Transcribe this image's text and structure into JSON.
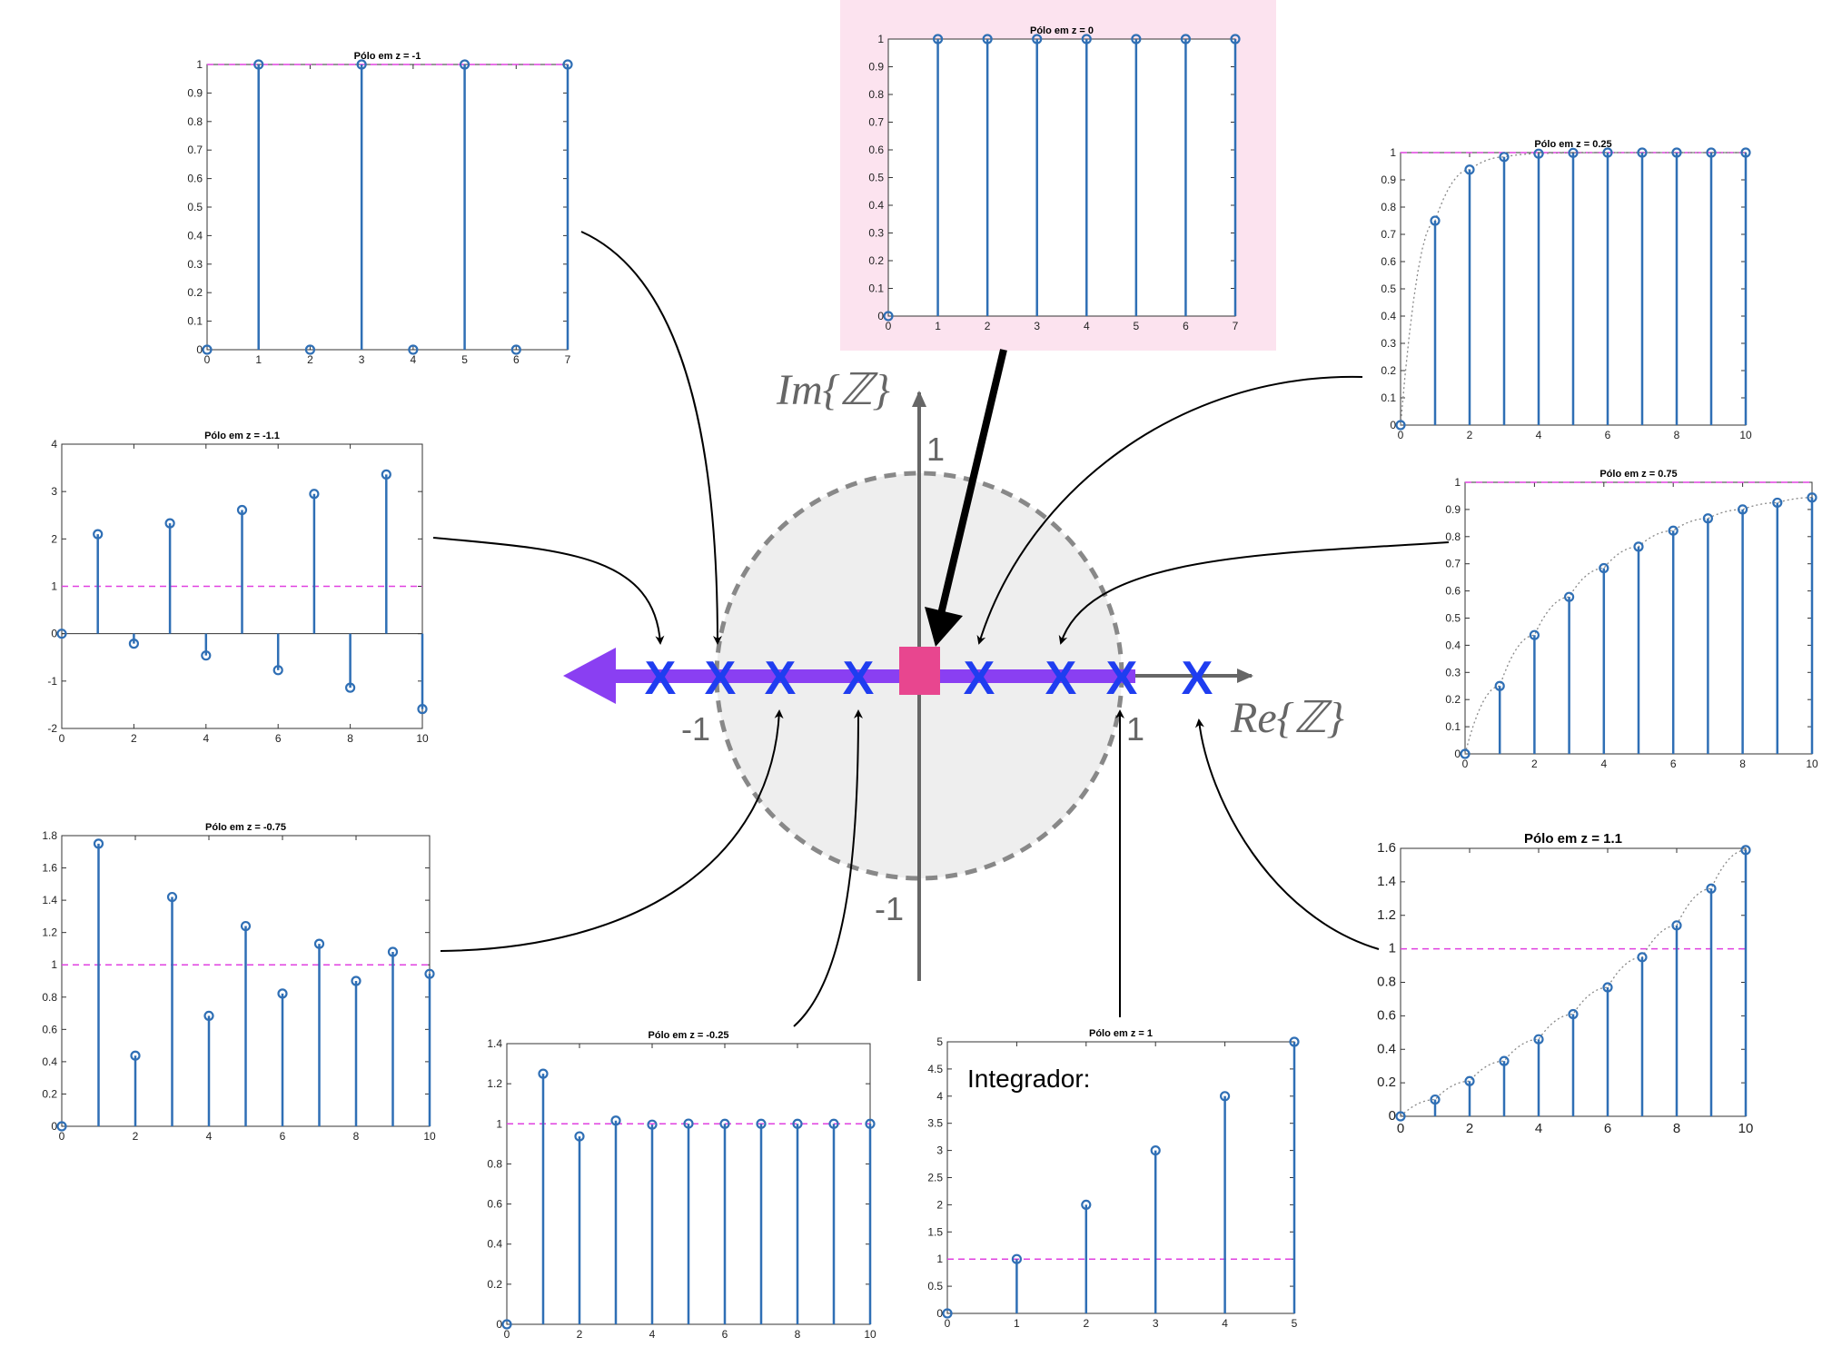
{
  "colors": {
    "stem": "#2f6fb5",
    "reference": "#e040e0",
    "envelope": "#888888",
    "pole_marker": "#1f3df0",
    "zero_marker": "#e8468f",
    "arrow_axis": "#8a3ff2",
    "highlight_bg": "#fce3ef",
    "unit_circle_fill": "#eeeeee",
    "unit_circle_edge": "#888888"
  },
  "diagram": {
    "im_label": "Im{ℤ}",
    "re_label": "Re{ℤ}",
    "tick_im_pos": "1",
    "tick_im_neg": "-1",
    "tick_re_neg": "-1",
    "tick_re_pos": "1",
    "pole_symbol": "X"
  },
  "chart_data": [
    {
      "id": "pole-m1",
      "type": "stem",
      "title": "Pólo em z = -1",
      "x": [
        0,
        1,
        2,
        3,
        4,
        5,
        6,
        7
      ],
      "y": [
        0,
        1,
        0,
        1,
        0,
        1,
        0,
        1
      ],
      "xlim": [
        0,
        7
      ],
      "ylim": [
        0,
        1
      ],
      "xticks": [
        "0",
        "1",
        "2",
        "3",
        "4",
        "5",
        "6",
        "7"
      ],
      "yticks": [
        "0",
        "0.1",
        "0.2",
        "0.3",
        "0.4",
        "0.5",
        "0.6",
        "0.7",
        "0.8",
        "0.9",
        "1"
      ],
      "reference": 1,
      "envelope": false,
      "highlight": false,
      "note": ""
    },
    {
      "id": "pole-0",
      "type": "stem",
      "title": "Pólo em z = 0",
      "x": [
        0,
        1,
        2,
        3,
        4,
        5,
        6,
        7
      ],
      "y": [
        0,
        1,
        1,
        1,
        1,
        1,
        1,
        1
      ],
      "xlim": [
        0,
        7
      ],
      "ylim": [
        0,
        1
      ],
      "xticks": [
        "0",
        "1",
        "2",
        "3",
        "4",
        "5",
        "6",
        "7"
      ],
      "yticks": [
        "0",
        "0.1",
        "0.2",
        "0.3",
        "0.4",
        "0.5",
        "0.6",
        "0.7",
        "0.8",
        "0.9",
        "1"
      ],
      "reference": null,
      "envelope": false,
      "highlight": true,
      "note": ""
    },
    {
      "id": "pole-025",
      "type": "stem",
      "title": "Pólo em z = 0.25",
      "x": [
        0,
        1,
        2,
        3,
        4,
        5,
        6,
        7,
        8,
        9,
        10
      ],
      "y": [
        0,
        0.75,
        0.9375,
        0.984,
        0.996,
        0.999,
        1,
        1,
        1,
        1,
        1
      ],
      "xlim": [
        0,
        10
      ],
      "ylim": [
        0,
        1
      ],
      "xticks": [
        "0",
        "2",
        "4",
        "6",
        "8",
        "10"
      ],
      "yticks": [
        "0",
        "0.1",
        "0.2",
        "0.3",
        "0.4",
        "0.5",
        "0.6",
        "0.7",
        "0.8",
        "0.9",
        "1"
      ],
      "reference": 1,
      "envelope": true,
      "highlight": false,
      "note": ""
    },
    {
      "id": "pole-m11",
      "type": "stem",
      "title": "Pólo em z = -1.1",
      "x": [
        0,
        1,
        2,
        3,
        4,
        5,
        6,
        7,
        8,
        9,
        10
      ],
      "y": [
        0,
        2.1,
        -0.21,
        2.33,
        -0.46,
        2.61,
        -0.77,
        2.95,
        -1.14,
        3.36,
        -1.59
      ],
      "xlim": [
        0,
        10
      ],
      "ylim": [
        -2,
        4
      ],
      "xticks": [
        "0",
        "2",
        "4",
        "6",
        "8",
        "10"
      ],
      "yticks": [
        "-2",
        "-1",
        "0",
        "1",
        "2",
        "3",
        "4"
      ],
      "reference": 1,
      "envelope": false,
      "highlight": false,
      "note": ""
    },
    {
      "id": "pole-075",
      "type": "stem",
      "title": "Pólo em z = 0.75",
      "x": [
        0,
        1,
        2,
        3,
        4,
        5,
        6,
        7,
        8,
        9,
        10
      ],
      "y": [
        0,
        0.25,
        0.4375,
        0.578,
        0.684,
        0.763,
        0.822,
        0.867,
        0.9,
        0.925,
        0.944
      ],
      "xlim": [
        0,
        10
      ],
      "ylim": [
        0,
        1
      ],
      "xticks": [
        "0",
        "2",
        "4",
        "6",
        "8",
        "10"
      ],
      "yticks": [
        "0",
        "0.1",
        "0.2",
        "0.3",
        "0.4",
        "0.5",
        "0.6",
        "0.7",
        "0.8",
        "0.9",
        "1"
      ],
      "reference": 1,
      "envelope": true,
      "highlight": false,
      "note": ""
    },
    {
      "id": "pole-m075",
      "type": "stem",
      "title": "Pólo em z = -0.75",
      "x": [
        0,
        1,
        2,
        3,
        4,
        5,
        6,
        7,
        8,
        9,
        10
      ],
      "y": [
        0,
        1.75,
        0.4375,
        1.42,
        0.684,
        1.24,
        0.822,
        1.13,
        0.9,
        1.08,
        0.944
      ],
      "xlim": [
        0,
        10
      ],
      "ylim": [
        0,
        1.8
      ],
      "xticks": [
        "0",
        "2",
        "4",
        "6",
        "8",
        "10"
      ],
      "yticks": [
        "0",
        "0.2",
        "0.4",
        "0.6",
        "0.8",
        "1",
        "1.2",
        "1.4",
        "1.6",
        "1.8"
      ],
      "reference": 1,
      "envelope": false,
      "highlight": false,
      "note": ""
    },
    {
      "id": "pole-m025",
      "type": "stem",
      "title": "Pólo em z = -0.25",
      "x": [
        0,
        1,
        2,
        3,
        4,
        5,
        6,
        7,
        8,
        9,
        10
      ],
      "y": [
        0,
        1.25,
        0.9375,
        1.016,
        0.996,
        1.001,
        1,
        1,
        1,
        1,
        1
      ],
      "xlim": [
        0,
        10
      ],
      "ylim": [
        0,
        1.4
      ],
      "xticks": [
        "0",
        "2",
        "4",
        "6",
        "8",
        "10"
      ],
      "yticks": [
        "0",
        "0.2",
        "0.4",
        "0.6",
        "0.8",
        "1",
        "1.2",
        "1.4"
      ],
      "reference": 1,
      "envelope": false,
      "highlight": false,
      "note": ""
    },
    {
      "id": "pole-1",
      "type": "stem",
      "title": "Pólo em z = 1",
      "x": [
        0,
        1,
        2,
        3,
        4,
        5
      ],
      "y": [
        0,
        1,
        2,
        3,
        4,
        5
      ],
      "xlim": [
        0,
        5
      ],
      "ylim": [
        0,
        5
      ],
      "xticks": [
        "0",
        "1",
        "2",
        "3",
        "4",
        "5"
      ],
      "yticks": [
        "0",
        "0.5",
        "1",
        "1.5",
        "2",
        "2.5",
        "3",
        "3.5",
        "4",
        "4.5",
        "5"
      ],
      "reference": 1,
      "envelope": false,
      "highlight": false,
      "note": "Integrador:"
    },
    {
      "id": "pole-11",
      "type": "stem",
      "title": "Pólo em z = 1.1",
      "x": [
        0,
        1,
        2,
        3,
        4,
        5,
        6,
        7,
        8,
        9,
        10
      ],
      "y": [
        0,
        0.1,
        0.21,
        0.33,
        0.46,
        0.61,
        0.77,
        0.95,
        1.14,
        1.36,
        1.59
      ],
      "xlim": [
        0,
        10
      ],
      "ylim": [
        0,
        1.6
      ],
      "xticks": [
        "0",
        "2",
        "4",
        "6",
        "8",
        "10"
      ],
      "yticks": [
        "0",
        "0.2",
        "0.4",
        "0.6",
        "0.8",
        "1",
        "1.2",
        "1.4",
        "1.6"
      ],
      "reference": 1,
      "envelope": true,
      "highlight": false,
      "note": ""
    }
  ]
}
